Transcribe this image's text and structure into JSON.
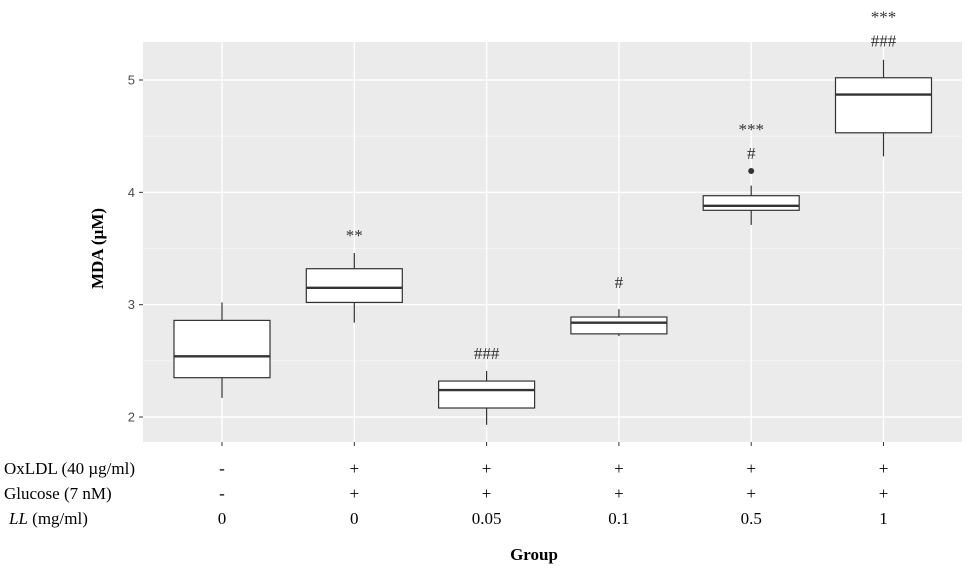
{
  "chart_data": {
    "type": "box",
    "ylabel": "MDA (µM)",
    "xlabel": "Group",
    "ylim": [
      1.8,
      5.35
    ],
    "yticks": [
      2,
      3,
      4,
      5
    ],
    "grid": true,
    "categories": [
      "1",
      "2",
      "3",
      "4",
      "5",
      "6"
    ],
    "boxes": [
      {
        "min": 2.17,
        "q1": 2.35,
        "median": 2.54,
        "q3": 2.86,
        "max": 3.02,
        "outliers": []
      },
      {
        "min": 2.84,
        "q1": 3.02,
        "median": 3.15,
        "q3": 3.32,
        "max": 3.46,
        "outliers": []
      },
      {
        "min": 1.93,
        "q1": 2.08,
        "median": 2.24,
        "q3": 2.32,
        "max": 2.41,
        "outliers": []
      },
      {
        "min": 2.72,
        "q1": 2.74,
        "median": 2.84,
        "q3": 2.89,
        "max": 2.96,
        "outliers": []
      },
      {
        "min": 3.71,
        "q1": 3.84,
        "median": 3.88,
        "q3": 3.97,
        "max": 4.06,
        "outliers": [
          4.19
        ]
      },
      {
        "min": 4.32,
        "q1": 4.53,
        "median": 4.87,
        "q3": 5.02,
        "max": 5.18,
        "outliers": []
      }
    ],
    "annotations": [
      {
        "group": 1,
        "lines": [
          "**"
        ],
        "y": 3.62
      },
      {
        "group": 2,
        "lines": [
          "###"
        ],
        "y": 2.57
      },
      {
        "group": 3,
        "lines": [
          "#"
        ],
        "y": 3.2
      },
      {
        "group": 4,
        "lines": [
          "***",
          "#"
        ],
        "y": 4.35
      },
      {
        "group": 5,
        "lines": [
          "***",
          "###"
        ],
        "y": 5.35
      }
    ],
    "conditions": [
      {
        "label": "OxLDL (40 µg/ml)",
        "values": [
          "-",
          "+",
          "+",
          "+",
          "+",
          "+"
        ]
      },
      {
        "label": "Glucose (7 nM)",
        "values": [
          "-",
          "+",
          "+",
          "+",
          "+",
          "+"
        ]
      },
      {
        "label_italic": "LL",
        "label_rest": " (mg/ml)",
        "values": [
          "0",
          "0",
          "0.05",
          "0.1",
          "0.5",
          "1"
        ]
      }
    ]
  },
  "colors": {
    "panel": "#ebebeb",
    "grid_major": "#ffffff",
    "box_fill": "#ffffff",
    "box_stroke": "#333333",
    "outlier": "#333333"
  }
}
